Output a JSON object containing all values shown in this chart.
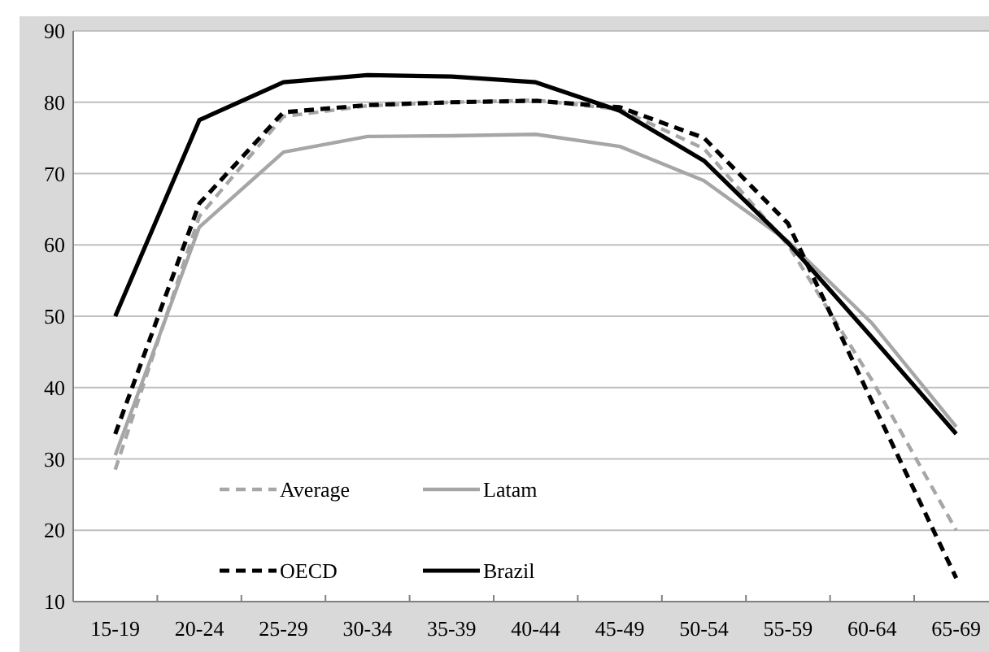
{
  "chart_data": {
    "type": "line",
    "categories": [
      "15-19",
      "20-24",
      "25-29",
      "30-34",
      "35-39",
      "40-44",
      "45-49",
      "50-54",
      "55-59",
      "60-64",
      "65-69"
    ],
    "ylim": [
      10,
      90
    ],
    "yticks": [
      10,
      20,
      30,
      40,
      50,
      60,
      70,
      80,
      90
    ],
    "grid": "y",
    "legend": "bottom left",
    "series": [
      {
        "name": "Average",
        "color": "#a6a6a6",
        "line_style": "dashed",
        "values": [
          28.5,
          64,
          78,
          79.5,
          80,
          80.3,
          79,
          73.5,
          60,
          41,
          20
        ]
      },
      {
        "name": "Latam",
        "color": "#a6a6a6",
        "line_style": "solid",
        "values": [
          30.5,
          62.5,
          73,
          75.2,
          75.3,
          75.5,
          73.8,
          69,
          60.5,
          49,
          34.5
        ]
      },
      {
        "name": "OECD",
        "color": "#000000",
        "line_style": "dashed",
        "values": [
          33.5,
          65.8,
          78.6,
          79.6,
          80,
          80.2,
          79.3,
          75,
          63,
          38,
          13.3
        ]
      },
      {
        "name": "Brazil",
        "color": "#000000",
        "line_style": "solid",
        "values": [
          50,
          77.5,
          82.8,
          83.8,
          83.6,
          82.8,
          78.8,
          71.8,
          60.3,
          47,
          33.5
        ]
      }
    ]
  }
}
